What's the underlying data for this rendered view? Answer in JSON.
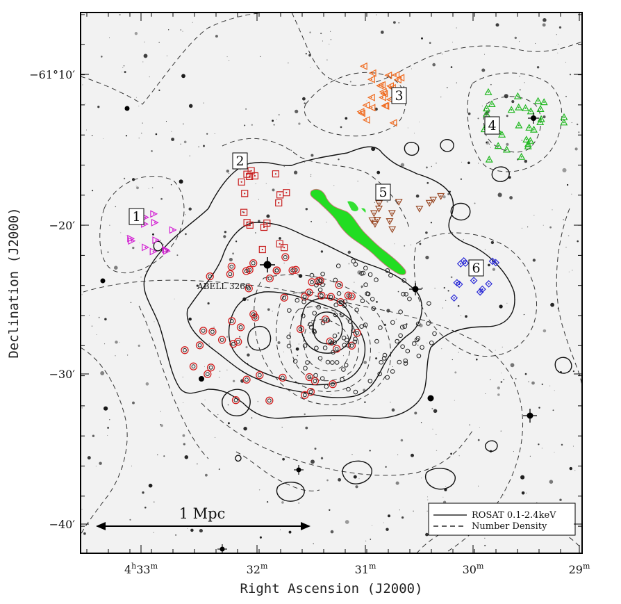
{
  "figure": {
    "x_axis_label": "Right Ascension (J2000)",
    "y_axis_label": "Declination (J2000)",
    "x_ticks": [
      {
        "label": "4h33m",
        "main": "4",
        "sup1": "h",
        "mid": "33",
        "sup2": "m"
      },
      {
        "label": "32m",
        "main": "32",
        "sup2": "m"
      },
      {
        "label": "31m",
        "main": "31",
        "sup2": "m"
      },
      {
        "label": "30m",
        "main": "30",
        "sup2": "m"
      },
      {
        "label": "29m",
        "main": "29",
        "sup2": "m"
      }
    ],
    "y_ticks": [
      "−61°10′",
      "−20′",
      "−30′",
      "−40′"
    ],
    "cluster_name": "ABELL 3266",
    "scale_bar_label": "1 Mpc",
    "legend": {
      "solid_label": "ROSAT 0.1-2.4keV",
      "dashed_label": "Number Density"
    },
    "groups": [
      {
        "id": "1",
        "symbol": "triangle-right",
        "color": "#d21fd2",
        "count": 12
      },
      {
        "id": "2",
        "symbol": "square",
        "color": "#c81e1e",
        "count": 18
      },
      {
        "id": "3",
        "symbol": "triangle-left",
        "color": "#f06a1e",
        "count": 24
      },
      {
        "id": "4",
        "symbol": "triangle-up",
        "color": "#1fb71f",
        "count": 30
      },
      {
        "id": "5",
        "symbol": "triangle-down",
        "color": "#9a4a26",
        "count": 14
      },
      {
        "id": "6",
        "symbol": "diamond",
        "color": "#2b2bd6",
        "count": 12
      }
    ],
    "colors": {
      "core_members": "#d21f1f",
      "other_members": "#222222",
      "radio_relic": "#22dd22",
      "frame": "#000000"
    }
  }
}
